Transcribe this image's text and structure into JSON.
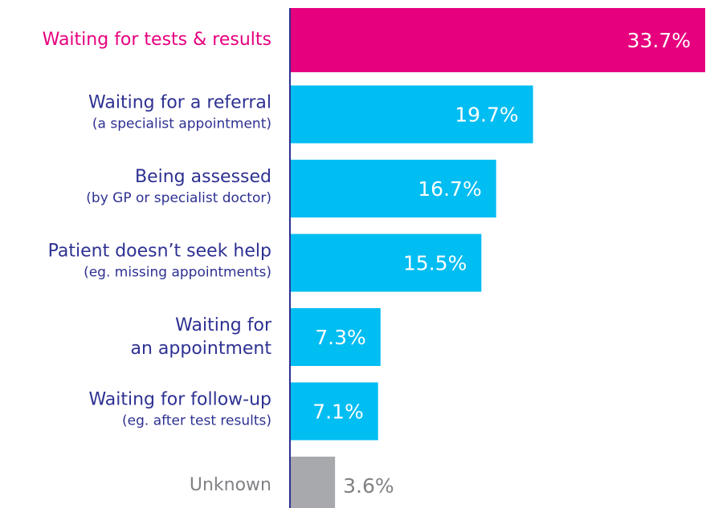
{
  "chart_data": {
    "type": "barh",
    "categories": [
      [
        "Waiting for tests & results"
      ],
      [
        "Waiting for a referral"
      ],
      [
        "Being assessed"
      ],
      [
        "Patient doesn’t seek help"
      ],
      [
        "Waiting for",
        "an appointment"
      ],
      [
        "Waiting for follow-up"
      ],
      [
        "Unknown"
      ]
    ],
    "details": [
      null,
      "(a specialist appointment)",
      "(by GP or specialist doctor)",
      "(eg. missing appointments)",
      null,
      "(eg. after test results)",
      null
    ],
    "values": [
      33.7,
      19.7,
      16.7,
      15.5,
      7.3,
      7.1,
      3.6
    ],
    "value_labels": [
      "33.7%",
      "19.7%",
      "16.7%",
      "15.5%",
      "7.3%",
      "7.1%",
      "3.6%"
    ],
    "colors": [
      "#e6007e",
      "#00bdf2",
      "#00bdf2",
      "#00bdf2",
      "#00bdf2",
      "#00bdf2",
      "#a7a9ac"
    ],
    "label_colors": [
      "#e6007e",
      "#2e3192",
      "#2e3192",
      "#2e3192",
      "#2e3192",
      "#2e3192",
      "#808285"
    ]
  }
}
